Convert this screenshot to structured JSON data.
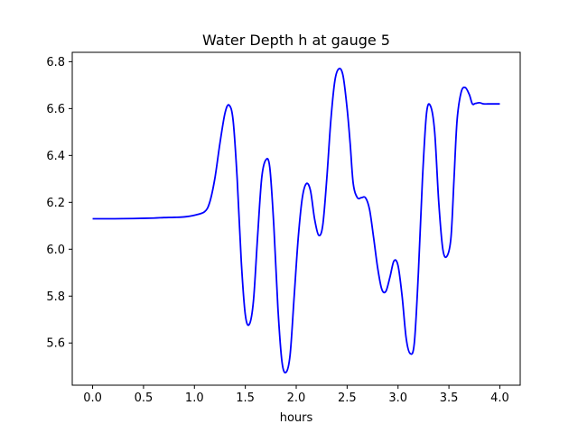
{
  "chart_data": {
    "type": "line",
    "title": "Water Depth h at gauge 5",
    "xlabel": "hours",
    "ylabel": "",
    "xlim": [
      -0.2,
      4.2
    ],
    "ylim": [
      5.42,
      6.84
    ],
    "xticks": [
      0.0,
      0.5,
      1.0,
      1.5,
      2.0,
      2.5,
      3.0,
      3.5,
      4.0
    ],
    "xtick_labels": [
      "0.0",
      "0.5",
      "1.0",
      "1.5",
      "2.0",
      "2.5",
      "3.0",
      "3.5",
      "4.0"
    ],
    "yticks": [
      5.6,
      5.8,
      6.0,
      6.2,
      6.4,
      6.6,
      6.8
    ],
    "ytick_labels": [
      "5.6",
      "5.8",
      "6.0",
      "6.2",
      "6.4",
      "6.6",
      "6.8"
    ],
    "grid": false,
    "line_color": "#0000ff",
    "series": [
      {
        "x": [
          0.0,
          0.2,
          0.4,
          0.6,
          0.7,
          0.8,
          0.9,
          1.0,
          1.1,
          1.15,
          1.2,
          1.25,
          1.3,
          1.34,
          1.38,
          1.42,
          1.46,
          1.5,
          1.54,
          1.58,
          1.62,
          1.66,
          1.7,
          1.74,
          1.78,
          1.82,
          1.86,
          1.9,
          1.94,
          1.98,
          2.02,
          2.06,
          2.1,
          2.14,
          2.18,
          2.22,
          2.26,
          2.3,
          2.34,
          2.38,
          2.42,
          2.46,
          2.5,
          2.53,
          2.56,
          2.6,
          2.64,
          2.68,
          2.72,
          2.76,
          2.8,
          2.84,
          2.88,
          2.92,
          2.96,
          3.0,
          3.04,
          3.08,
          3.12,
          3.16,
          3.2,
          3.24,
          3.28,
          3.32,
          3.36,
          3.4,
          3.44,
          3.48,
          3.52,
          3.55,
          3.58,
          3.62,
          3.66,
          3.7,
          3.73,
          3.76,
          3.8,
          3.84,
          3.88,
          3.92,
          3.95,
          3.98,
          4.0
        ],
        "y": [
          6.13,
          6.13,
          6.131,
          6.133,
          6.135,
          6.136,
          6.138,
          6.145,
          6.16,
          6.2,
          6.3,
          6.45,
          6.58,
          6.615,
          6.55,
          6.3,
          5.95,
          5.72,
          5.68,
          5.78,
          6.05,
          6.3,
          6.38,
          6.35,
          6.1,
          5.75,
          5.52,
          5.475,
          5.55,
          5.8,
          6.05,
          6.22,
          6.28,
          6.25,
          6.13,
          6.06,
          6.1,
          6.3,
          6.55,
          6.72,
          6.77,
          6.74,
          6.6,
          6.45,
          6.28,
          6.22,
          6.22,
          6.22,
          6.17,
          6.05,
          5.92,
          5.83,
          5.82,
          5.88,
          5.95,
          5.93,
          5.8,
          5.62,
          5.555,
          5.6,
          5.9,
          6.3,
          6.58,
          6.61,
          6.5,
          6.2,
          6.0,
          5.97,
          6.05,
          6.3,
          6.55,
          6.67,
          6.69,
          6.66,
          6.62,
          6.622,
          6.625,
          6.62,
          6.62,
          6.62,
          6.62,
          6.62,
          6.62
        ]
      }
    ]
  }
}
